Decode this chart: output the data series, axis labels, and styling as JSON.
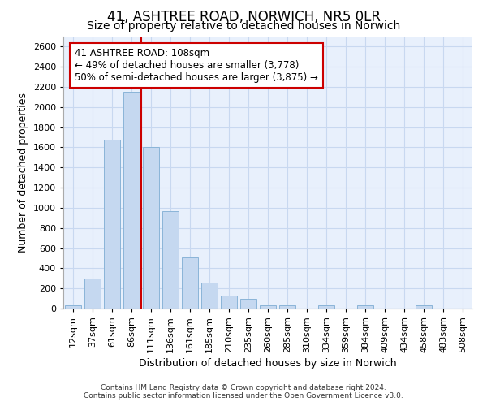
{
  "title": "41, ASHTREE ROAD, NORWICH, NR5 0LR",
  "subtitle": "Size of property relative to detached houses in Norwich",
  "xlabel": "Distribution of detached houses by size in Norwich",
  "ylabel": "Number of detached properties",
  "footer1": "Contains HM Land Registry data © Crown copyright and database right 2024.",
  "footer2": "Contains public sector information licensed under the Open Government Licence v3.0.",
  "categories": [
    "12sqm",
    "37sqm",
    "61sqm",
    "86sqm",
    "111sqm",
    "136sqm",
    "161sqm",
    "185sqm",
    "210sqm",
    "235sqm",
    "260sqm",
    "285sqm",
    "310sqm",
    "334sqm",
    "359sqm",
    "384sqm",
    "409sqm",
    "434sqm",
    "458sqm",
    "483sqm",
    "508sqm"
  ],
  "values": [
    30,
    300,
    1680,
    2150,
    1600,
    970,
    510,
    260,
    130,
    100,
    35,
    35,
    0,
    30,
    0,
    30,
    0,
    0,
    30,
    0,
    0
  ],
  "bar_color": "#c5d8f0",
  "bar_edge_color": "#8ab4d8",
  "property_line_x": 3.5,
  "property_line_color": "#cc0000",
  "annotation_line1": "41 ASHTREE ROAD: 108sqm",
  "annotation_line2": "← 49% of detached houses are smaller (3,778)",
  "annotation_line3": "50% of semi-detached houses are larger (3,875) →",
  "annotation_box_color": "#cc0000",
  "ylim": [
    0,
    2700
  ],
  "yticks": [
    0,
    200,
    400,
    600,
    800,
    1000,
    1200,
    1400,
    1600,
    1800,
    2000,
    2200,
    2400,
    2600
  ],
  "grid_color": "#c8d8f0",
  "background_color": "#e8f0fc",
  "title_fontsize": 12,
  "subtitle_fontsize": 10,
  "ylabel_fontsize": 9,
  "xlabel_fontsize": 9,
  "tick_fontsize": 8,
  "xtick_fontsize": 8
}
